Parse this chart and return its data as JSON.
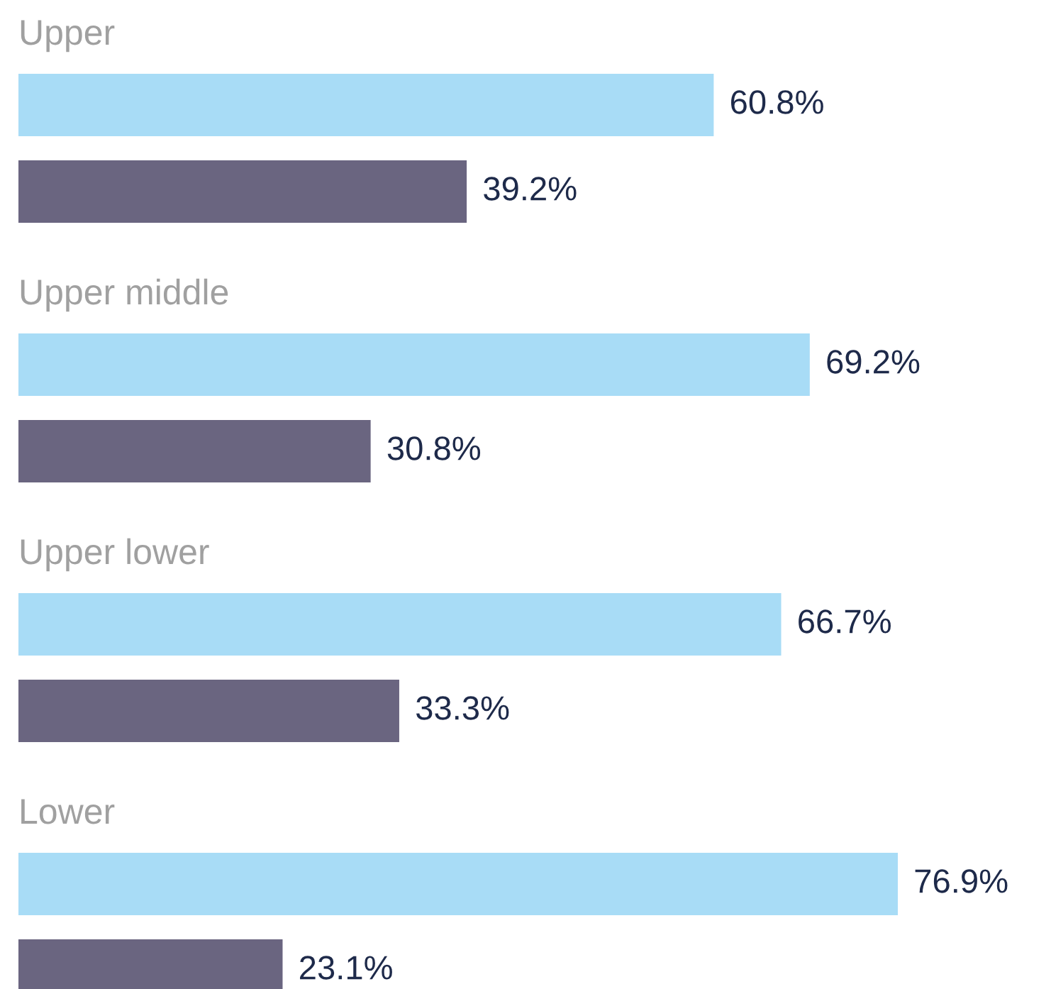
{
  "chart_data": {
    "type": "bar",
    "orientation": "horizontal",
    "categories": [
      "Upper",
      "Upper middle",
      "Upper lower",
      "Lower"
    ],
    "series": [
      {
        "color": "#a8dcf6",
        "values": [
          60.8,
          69.2,
          66.7,
          76.9
        ],
        "value_labels": [
          "60.8%",
          "69.2%",
          "66.7%",
          "76.9%"
        ]
      },
      {
        "color": "#6a6580",
        "values": [
          39.2,
          30.8,
          33.3,
          23.1
        ],
        "value_labels": [
          "39.2%",
          "30.8%",
          "33.3%",
          "23.1%"
        ]
      }
    ],
    "legend": false
  }
}
